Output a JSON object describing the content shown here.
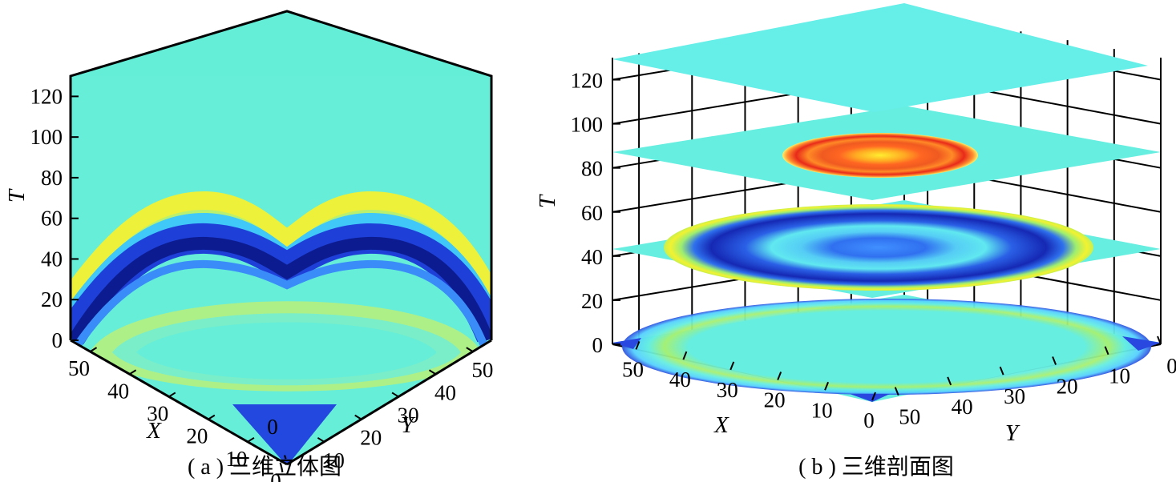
{
  "chart_data": [
    {
      "type": "heatmap",
      "panel": "a",
      "caption": "( a ) 三维立体图",
      "view": "3d-volume",
      "axes": {
        "x": {
          "label": "X",
          "range": [
            0,
            55
          ],
          "ticks": [
            "0",
            "10",
            "20",
            "30",
            "40",
            "50"
          ]
        },
        "y": {
          "label": "Y",
          "range": [
            0,
            55
          ],
          "ticks": [
            "10",
            "20",
            "30",
            "40",
            "50"
          ]
        },
        "t": {
          "label": "T",
          "range": [
            0,
            130
          ],
          "ticks": [
            "0",
            "20",
            "40",
            "60",
            "80",
            "100",
            "120"
          ]
        }
      },
      "colormap": "jet",
      "background_color": "#66eed8",
      "wavefront_apex_T": [
        36,
        55
      ],
      "wavefront_edge_T": [
        0,
        20
      ]
    },
    {
      "type": "heatmap",
      "panel": "b",
      "caption": "( b ) 三维剖面图",
      "view": "3d-slices",
      "grid": true,
      "axes": {
        "x": {
          "label": "X",
          "range": [
            0,
            55
          ],
          "ticks": [
            "0",
            "10",
            "20",
            "30",
            "40",
            "50"
          ]
        },
        "y": {
          "label": "Y",
          "range": [
            0,
            55
          ],
          "ticks": [
            "0",
            "10",
            "20",
            "30",
            "40",
            "50"
          ]
        },
        "t": {
          "label": "T",
          "range": [
            0,
            130
          ],
          "ticks": [
            "0",
            "20",
            "40",
            "60",
            "80",
            "100",
            "120"
          ]
        }
      },
      "colormap": "jet",
      "slice_T": [
        0,
        40,
        80,
        120
      ],
      "slice_content": [
        "faint outer ring, blue corners",
        "blue ring with blue center",
        "red-orange disk with yellow core",
        "uniform"
      ]
    }
  ]
}
